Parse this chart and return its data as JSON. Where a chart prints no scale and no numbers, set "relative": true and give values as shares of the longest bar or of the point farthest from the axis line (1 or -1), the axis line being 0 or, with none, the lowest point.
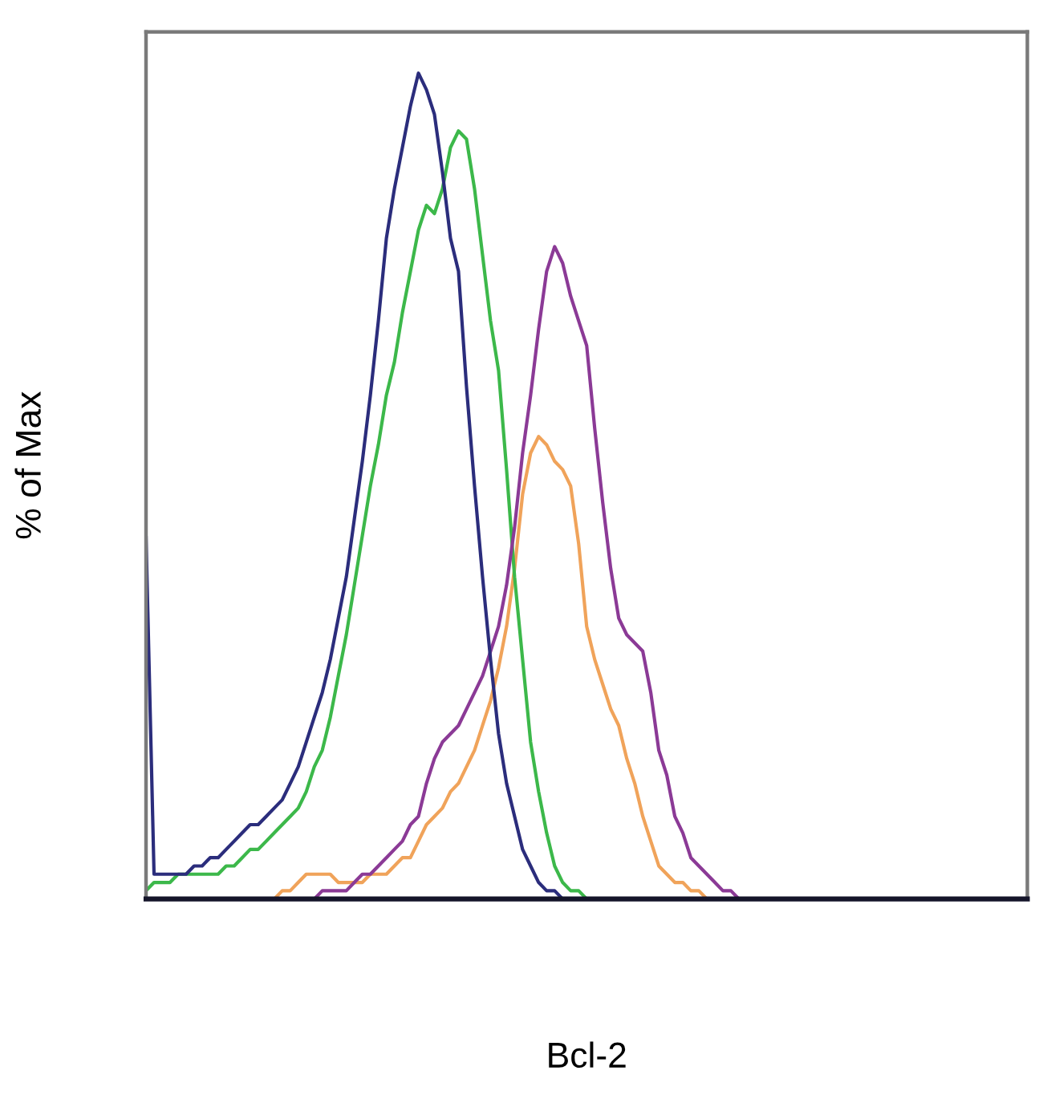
{
  "chart_data": {
    "type": "line",
    "relative": true,
    "xlabel": "Bcl-2",
    "ylabel": "% of Max",
    "categories": [
      null,
      null,
      null,
      null,
      null,
      null,
      null,
      null,
      null,
      null,
      null,
      null,
      null,
      null,
      null,
      null,
      null,
      null,
      null,
      null,
      null,
      null,
      null,
      null,
      null,
      null,
      null,
      null,
      null,
      null,
      null,
      null,
      null,
      null,
      null,
      null,
      null,
      null,
      null,
      null,
      null,
      null,
      null,
      null,
      null,
      null,
      null,
      null,
      null,
      null,
      null,
      null,
      null,
      null,
      null,
      null,
      null,
      null,
      null,
      null,
      null,
      null,
      null,
      null,
      null,
      null,
      null,
      null,
      null,
      null,
      null,
      null,
      null,
      null,
      null,
      null,
      null,
      null,
      null,
      null,
      null,
      null,
      null,
      null,
      null,
      null,
      null,
      null,
      null,
      null,
      null,
      null,
      null,
      null,
      null,
      null,
      null,
      null,
      null,
      null,
      null,
      null,
      null,
      null,
      null,
      null,
      null,
      null,
      null,
      null,
      null
    ],
    "series": [
      {
        "color": "#f0a35a",
        "values": [
          null,
          null,
          null,
          null,
          null,
          null,
          null,
          null,
          null,
          null,
          null,
          null,
          null,
          null,
          null,
          null,
          0,
          0.01,
          0.01,
          0.02,
          0.03,
          0.03,
          0.03,
          0.03,
          0.02,
          0.02,
          0.02,
          0.02,
          0.03,
          0.03,
          0.03,
          0.04,
          0.05,
          0.05,
          0.07,
          0.09,
          0.1,
          0.11,
          0.13,
          0.14,
          0.16,
          0.18,
          0.21,
          0.24,
          0.28,
          0.33,
          0.4,
          0.49,
          0.54,
          0.56,
          0.55,
          0.53,
          0.52,
          0.5,
          0.43,
          0.33,
          0.29,
          0.26,
          0.23,
          0.21,
          0.17,
          0.14,
          0.1,
          0.07,
          0.04,
          0.03,
          0.02,
          0.02,
          0.01,
          0.01,
          0,
          null,
          null,
          null,
          null,
          null,
          null,
          null,
          null,
          null,
          null,
          null,
          null,
          null,
          null,
          null,
          null,
          null,
          null,
          null,
          null,
          null,
          null,
          null,
          null,
          null,
          null,
          null,
          null,
          null,
          null,
          null,
          null,
          null,
          null,
          null,
          null,
          null,
          null,
          null,
          null
        ]
      },
      {
        "color": "#3cb84a",
        "values": [
          0.01,
          0.02,
          0.02,
          0.02,
          0.03,
          0.03,
          0.03,
          0.03,
          0.03,
          0.03,
          0.04,
          0.04,
          0.05,
          0.06,
          0.06,
          0.07,
          0.08,
          0.09,
          0.1,
          0.11,
          0.13,
          0.16,
          0.18,
          0.22,
          0.27,
          0.32,
          0.38,
          0.44,
          0.5,
          0.55,
          0.61,
          0.65,
          0.71,
          0.76,
          0.81,
          0.84,
          0.83,
          0.86,
          0.91,
          0.93,
          0.92,
          0.86,
          0.78,
          0.7,
          0.64,
          0.52,
          0.39,
          0.29,
          0.19,
          0.13,
          0.08,
          0.04,
          0.02,
          0.01,
          0.01,
          0,
          null,
          null,
          null,
          null,
          null,
          null,
          null,
          null,
          null,
          null,
          null,
          null,
          null,
          null,
          null,
          null,
          null,
          null,
          null,
          null,
          null,
          null,
          null,
          null,
          null,
          null,
          null,
          null,
          null,
          null,
          null,
          null,
          null,
          null,
          null,
          null,
          null,
          null,
          null,
          null,
          null,
          null,
          null,
          null,
          null,
          null,
          null,
          null,
          null,
          null,
          null,
          null,
          null,
          null,
          null
        ]
      },
      {
        "color": "#8b3a96",
        "values": [
          null,
          null,
          null,
          null,
          null,
          null,
          null,
          null,
          null,
          null,
          null,
          null,
          null,
          null,
          null,
          null,
          null,
          null,
          null,
          null,
          null,
          0,
          0.01,
          0.01,
          0.01,
          0.01,
          0.02,
          0.03,
          0.03,
          0.04,
          0.05,
          0.06,
          0.07,
          0.09,
          0.1,
          0.14,
          0.17,
          0.19,
          0.2,
          0.21,
          0.23,
          0.25,
          0.27,
          0.3,
          0.33,
          0.38,
          0.45,
          0.54,
          0.61,
          0.69,
          0.76,
          0.79,
          0.77,
          0.73,
          0.7,
          0.67,
          0.57,
          0.48,
          0.4,
          0.34,
          0.32,
          0.31,
          0.3,
          0.25,
          0.18,
          0.15,
          0.1,
          0.08,
          0.05,
          0.04,
          0.03,
          0.02,
          0.01,
          0.01,
          0,
          null,
          null,
          null,
          null,
          null,
          null,
          null,
          null,
          null,
          null,
          null,
          null,
          null,
          null,
          null,
          null,
          null,
          null,
          null,
          null,
          null,
          null,
          null,
          null,
          null,
          null,
          null,
          null,
          null,
          null,
          null,
          null,
          null,
          null,
          null,
          null
        ]
      },
      {
        "color": "#2b2d7c",
        "values": [
          0.44,
          0.03,
          0.03,
          0.03,
          0.03,
          0.03,
          0.04,
          0.04,
          0.05,
          0.05,
          0.06,
          0.07,
          0.08,
          0.09,
          0.09,
          0.1,
          0.11,
          0.12,
          0.14,
          0.16,
          0.19,
          0.22,
          0.25,
          0.29,
          0.34,
          0.39,
          0.46,
          0.53,
          0.61,
          0.7,
          0.8,
          0.86,
          0.91,
          0.96,
          1.0,
          0.98,
          0.95,
          0.88,
          0.8,
          0.76,
          0.62,
          0.5,
          0.39,
          0.29,
          0.2,
          0.14,
          0.1,
          0.06,
          0.04,
          0.02,
          0.01,
          0.01,
          0,
          null,
          null,
          null,
          null,
          null,
          null,
          null,
          null,
          null,
          null,
          null,
          null,
          null,
          null,
          null,
          null,
          null,
          null,
          null,
          null,
          null,
          null,
          null,
          null,
          null,
          null,
          null,
          null,
          null,
          null,
          null,
          null,
          null,
          null,
          null,
          null,
          null,
          null,
          null,
          null,
          null,
          null,
          null,
          null,
          null,
          null,
          null,
          null,
          null,
          null,
          null,
          null,
          null,
          null,
          null,
          null,
          null,
          null
        ]
      }
    ]
  }
}
